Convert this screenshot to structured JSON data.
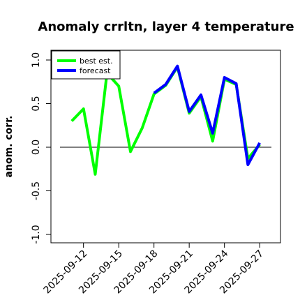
{
  "chart_data": {
    "type": "line",
    "title": "Anomaly crrltn, layer 4 temperature",
    "xlabel": "",
    "ylabel": "anom. corr.",
    "ylim": [
      -1.0,
      1.0
    ],
    "yticks": [
      -1.0,
      -0.5,
      0.0,
      0.5,
      1.0
    ],
    "ytick_labels": [
      "-1.0",
      "-0.5",
      "0.0",
      "0.5",
      "1.0"
    ],
    "x_range": [
      "2025-09-10",
      "2025-09-28"
    ],
    "xticks": [
      "2025-09-12",
      "2025-09-15",
      "2025-09-18",
      "2025-09-21",
      "2025-09-24",
      "2025-09-27"
    ],
    "highlight_tick": "2025-09-18",
    "highlight_color": "#228B22",
    "zero_line": true,
    "grid": false,
    "legend_position": "top-left",
    "series": [
      {
        "name": "best est.",
        "color": "#00ff00",
        "x": [
          "2025-09-11",
          "2025-09-12",
          "2025-09-13",
          "2025-09-14",
          "2025-09-15",
          "2025-09-16",
          "2025-09-17",
          "2025-09-18",
          "2025-09-19",
          "2025-09-20",
          "2025-09-21",
          "2025-09-22",
          "2025-09-23",
          "2025-09-24",
          "2025-09-25",
          "2025-09-26",
          "2025-09-27"
        ],
        "values": [
          0.3,
          0.44,
          -0.31,
          0.85,
          0.7,
          -0.05,
          0.22,
          0.61,
          0.71,
          0.92,
          0.39,
          0.58,
          0.07,
          0.78,
          0.72,
          -0.13,
          0.03
        ]
      },
      {
        "name": "forecast",
        "color": "#0000ff",
        "x": [
          "2025-09-18",
          "2025-09-19",
          "2025-09-20",
          "2025-09-21",
          "2025-09-22",
          "2025-09-23",
          "2025-09-24",
          "2025-09-25",
          "2025-09-26",
          "2025-09-27"
        ],
        "values": [
          0.62,
          0.72,
          0.93,
          0.41,
          0.6,
          0.16,
          0.8,
          0.73,
          -0.2,
          0.05
        ]
      }
    ]
  }
}
